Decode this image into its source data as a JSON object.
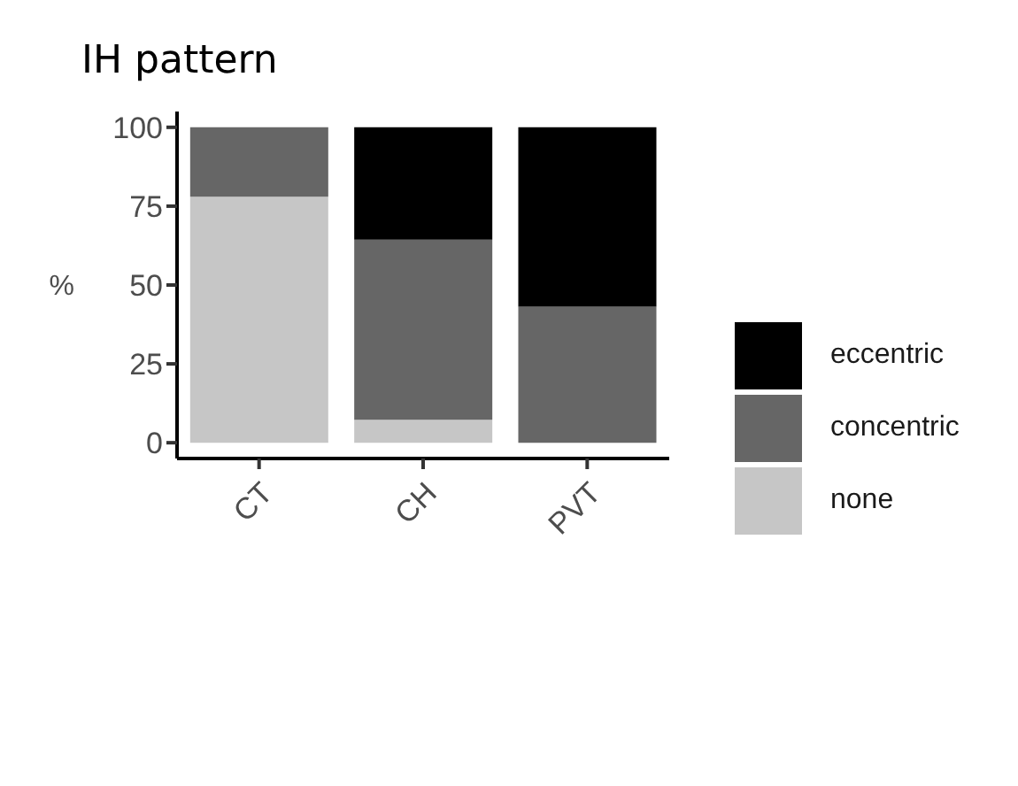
{
  "chart_data": {
    "type": "bar",
    "title": "IH pattern",
    "ylabel": "%",
    "categories": [
      "CT",
      "CH",
      "PVT"
    ],
    "stacked": true,
    "series": [
      {
        "name": "none",
        "color": "#c6c6c6",
        "values": [
          78,
          7.3,
          0
        ]
      },
      {
        "name": "concentric",
        "color": "#666666",
        "values": [
          22,
          57.1,
          43.1
        ]
      },
      {
        "name": "eccentric",
        "color": "#000000",
        "values": [
          0,
          35.6,
          56.9
        ]
      }
    ],
    "ylim": [
      -5,
      105
    ],
    "yticks": [
      0,
      25,
      50,
      75,
      100
    ],
    "grid": false,
    "legend": "right"
  }
}
